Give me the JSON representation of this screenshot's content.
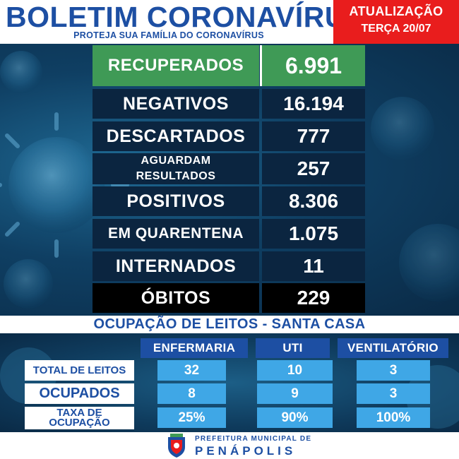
{
  "header": {
    "title": "BOLETIM CORONAVÍRUS",
    "subtitle": "PROTEJA SUA FAMÍLIA DO CORONAVÍRUS",
    "update_line1": "ATUALIZAÇÃO",
    "update_line2": "TERÇA 20/07"
  },
  "stats": [
    {
      "label": "RECUPERADOS",
      "value": "6.991"
    },
    {
      "label": "NEGATIVOS",
      "value": "16.194"
    },
    {
      "label": "DESCARTADOS",
      "value": "777"
    },
    {
      "label_line1": "AGUARDAM",
      "label_line2": "RESULTADOS",
      "value": "257"
    },
    {
      "label": "POSITIVOS",
      "value": "8.306"
    },
    {
      "label": "EM QUARENTENA",
      "value": "1.075"
    },
    {
      "label": "INTERNADOS",
      "value": "11"
    },
    {
      "label": "ÓBITOS",
      "value": "229"
    }
  ],
  "beds": {
    "title": "OCUPAÇÃO DE LEITOS - SANTA CASA",
    "columns": [
      "ENFERMARIA",
      "UTI",
      "VENTILATÓRIO"
    ],
    "rows": [
      {
        "label": "TOTAL DE LEITOS",
        "values": [
          "32",
          "10",
          "3"
        ]
      },
      {
        "label": "OCUPADOS",
        "values": [
          "8",
          "9",
          "3"
        ]
      },
      {
        "label_line1": "TAXA DE",
        "label_line2": "OCUPAÇÃO",
        "values": [
          "25%",
          "90%",
          "100%"
        ]
      }
    ]
  },
  "footer": {
    "line1": "PREFEITURA MUNICIPAL DE",
    "line2": "PENÁPOLIS"
  },
  "colors": {
    "brand_blue": "#1d4fa3",
    "alert_red": "#e91d1d",
    "recovered_green": "#3f9a56",
    "cell_blue": "#3fa7e6",
    "dark_navy": "#0b2540"
  }
}
